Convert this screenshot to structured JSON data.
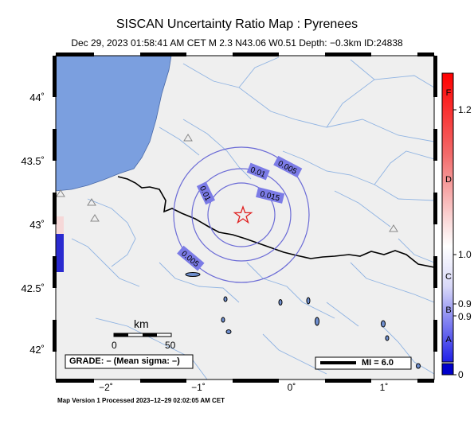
{
  "header": {
    "title": "SISCAN Uncertainty Ratio Map : Pyrenees",
    "subtitle": "Dec 29, 2023 01:58:41 AM CET   M 2.3   N43.06 W0.51   Depth: −0.3km   ID:24838"
  },
  "map": {
    "lat_ticks": [
      "44˚",
      "43.5˚",
      "43˚",
      "42.5˚",
      "42˚"
    ],
    "lon_ticks": [
      "−2˚",
      "−1˚",
      "0˚",
      "1˚"
    ],
    "contour_labels": [
      "0.005",
      "0.01",
      "0.015",
      "0.01",
      "0.005"
    ],
    "scale_bar": {
      "unit": "km",
      "start": "0",
      "end": "50"
    },
    "grade_box": "GRADE: – (Mean sigma: –)",
    "mi_box": "MI = 6.0",
    "epicenter_icon": "star-icon",
    "station_icon": "triangle-icon",
    "sea_color": "#7b9fdf",
    "land_color": "#efefef",
    "river_color": "#8fb3e2",
    "border_color": "#000000",
    "contour_color": "#6b6bd6",
    "star_color": "#e02020"
  },
  "colorbar": {
    "grade_labels": [
      "F",
      "D",
      "C",
      "B",
      "A"
    ],
    "value_labels": [
      "1.2",
      "1.0",
      "0.9",
      "0.9",
      "0"
    ],
    "top_color": "#ff0000",
    "bottom_color": "#0000ff"
  },
  "footer": {
    "text": "Map Version 1 Processed 2023–12–29 02:02:05 AM CET"
  }
}
